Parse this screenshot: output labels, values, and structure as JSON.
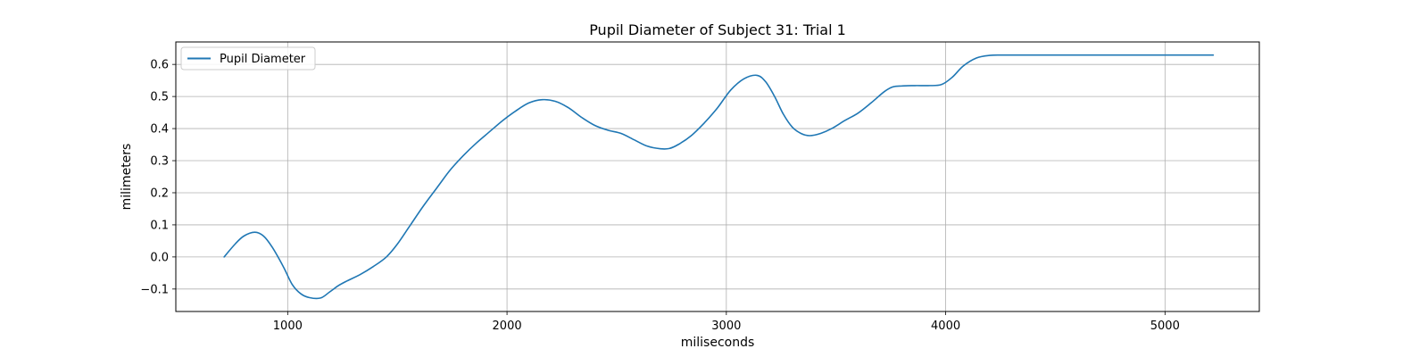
{
  "chart_data": {
    "type": "line",
    "title": "Pupil Diameter of Subject 31: Trial 1",
    "xlabel": "miliseconds",
    "ylabel": "milimeters",
    "xlim": [
      490,
      5430
    ],
    "ylim": [
      -0.17,
      0.67
    ],
    "xticks": [
      1000,
      2000,
      3000,
      4000,
      5000
    ],
    "yticks": [
      -0.1,
      0.0,
      0.1,
      0.2,
      0.3,
      0.4,
      0.5,
      0.6
    ],
    "ytick_labels": [
      "−0.1",
      "0.0",
      "0.1",
      "0.2",
      "0.3",
      "0.4",
      "0.5",
      "0.6"
    ],
    "grid": true,
    "legend_position": "top-left",
    "series": [
      {
        "name": "Pupil Diameter",
        "color": "#1f77b4",
        "x": [
          710,
          760,
          800,
          850,
          890,
          930,
          980,
          1020,
          1060,
          1100,
          1150,
          1190,
          1230,
          1270,
          1330,
          1390,
          1450,
          1500,
          1560,
          1620,
          1680,
          1740,
          1800,
          1860,
          1920,
          1980,
          2040,
          2100,
          2160,
          2220,
          2280,
          2340,
          2400,
          2460,
          2520,
          2580,
          2640,
          2700,
          2740,
          2780,
          2840,
          2900,
          2960,
          3020,
          3080,
          3140,
          3180,
          3220,
          3260,
          3300,
          3340,
          3380,
          3430,
          3480,
          3540,
          3600,
          3660,
          3720,
          3760,
          3800,
          3860,
          3920,
          3980,
          4030,
          4080,
          4140,
          4200,
          4260,
          4400,
          4600,
          4800,
          5000,
          5220
        ],
        "y": [
          0.0,
          0.04,
          0.065,
          0.077,
          0.065,
          0.03,
          -0.03,
          -0.085,
          -0.115,
          -0.127,
          -0.128,
          -0.11,
          -0.09,
          -0.075,
          -0.055,
          -0.03,
          0.0,
          0.04,
          0.1,
          0.16,
          0.215,
          0.27,
          0.315,
          0.355,
          0.39,
          0.425,
          0.455,
          0.48,
          0.49,
          0.485,
          0.465,
          0.435,
          0.41,
          0.395,
          0.385,
          0.365,
          0.345,
          0.337,
          0.338,
          0.35,
          0.378,
          0.418,
          0.465,
          0.52,
          0.555,
          0.566,
          0.545,
          0.5,
          0.445,
          0.405,
          0.385,
          0.378,
          0.385,
          0.4,
          0.425,
          0.448,
          0.48,
          0.515,
          0.53,
          0.533,
          0.534,
          0.534,
          0.537,
          0.56,
          0.595,
          0.62,
          0.628,
          0.629,
          0.629,
          0.629,
          0.629,
          0.629,
          0.629
        ]
      }
    ]
  }
}
